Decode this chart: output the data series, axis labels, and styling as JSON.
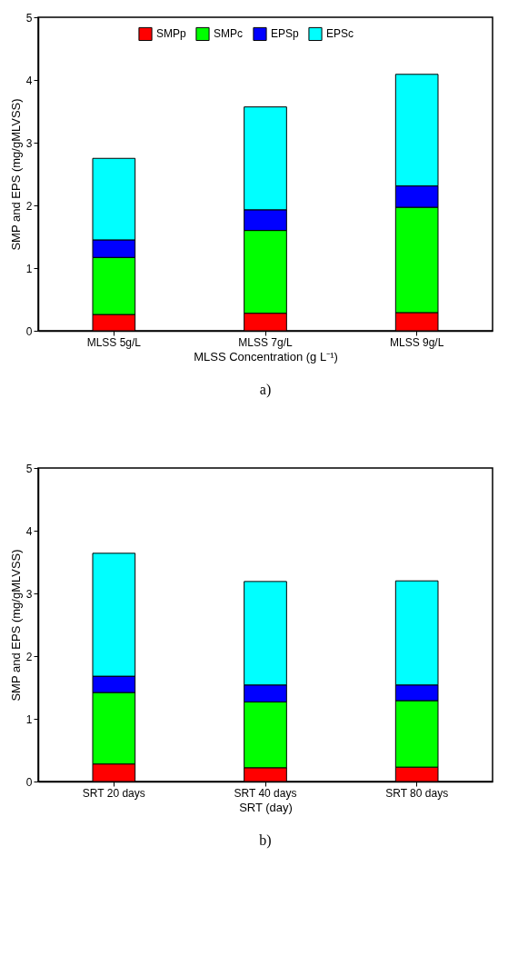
{
  "chart_data": [
    {
      "type": "bar",
      "stacked": true,
      "xlabel": "MLSS Concentration (g L⁻¹)",
      "ylabel": "SMP and EPS  (mg/gMLVSS)",
      "categories": [
        "MLSS 5g/L",
        "MLSS 7g/L",
        "MLSS 9g/L"
      ],
      "series": [
        {
          "name": "SMPp",
          "color": "#ff0000",
          "values": [
            0.26,
            0.28,
            0.29
          ]
        },
        {
          "name": "SMPc",
          "color": "#00ff00",
          "values": [
            0.91,
            1.32,
            1.68
          ]
        },
        {
          "name": "EPSp",
          "color": "#0000ff",
          "values": [
            0.28,
            0.33,
            0.34
          ]
        },
        {
          "name": "EPSc",
          "color": "#00ffff",
          "values": [
            1.3,
            1.64,
            1.78
          ]
        }
      ],
      "ylim": [
        0,
        5
      ],
      "yticks": [
        0,
        1,
        2,
        3,
        4,
        5
      ],
      "legend": "top",
      "annotations": [
        "a)"
      ]
    },
    {
      "type": "bar",
      "stacked": true,
      "xlabel": "SRT (day)",
      "ylabel": "SMP and EPS (mg/gMLVSS)",
      "categories": [
        "SRT 20 days",
        "SRT 40 days",
        "SRT 80 days"
      ],
      "series": [
        {
          "name": "SMPp",
          "color": "#ff0000",
          "values": [
            0.28,
            0.22,
            0.23
          ]
        },
        {
          "name": "SMPc",
          "color": "#00ff00",
          "values": [
            1.14,
            1.05,
            1.06
          ]
        },
        {
          "name": "EPSp",
          "color": "#0000ff",
          "values": [
            0.26,
            0.27,
            0.25
          ]
        },
        {
          "name": "EPSc",
          "color": "#00ffff",
          "values": [
            1.96,
            1.65,
            1.66
          ]
        }
      ],
      "ylim": [
        0,
        5
      ],
      "yticks": [
        0,
        1,
        2,
        3,
        4,
        5
      ],
      "legend": "top",
      "annotations": [
        "b)"
      ]
    }
  ]
}
